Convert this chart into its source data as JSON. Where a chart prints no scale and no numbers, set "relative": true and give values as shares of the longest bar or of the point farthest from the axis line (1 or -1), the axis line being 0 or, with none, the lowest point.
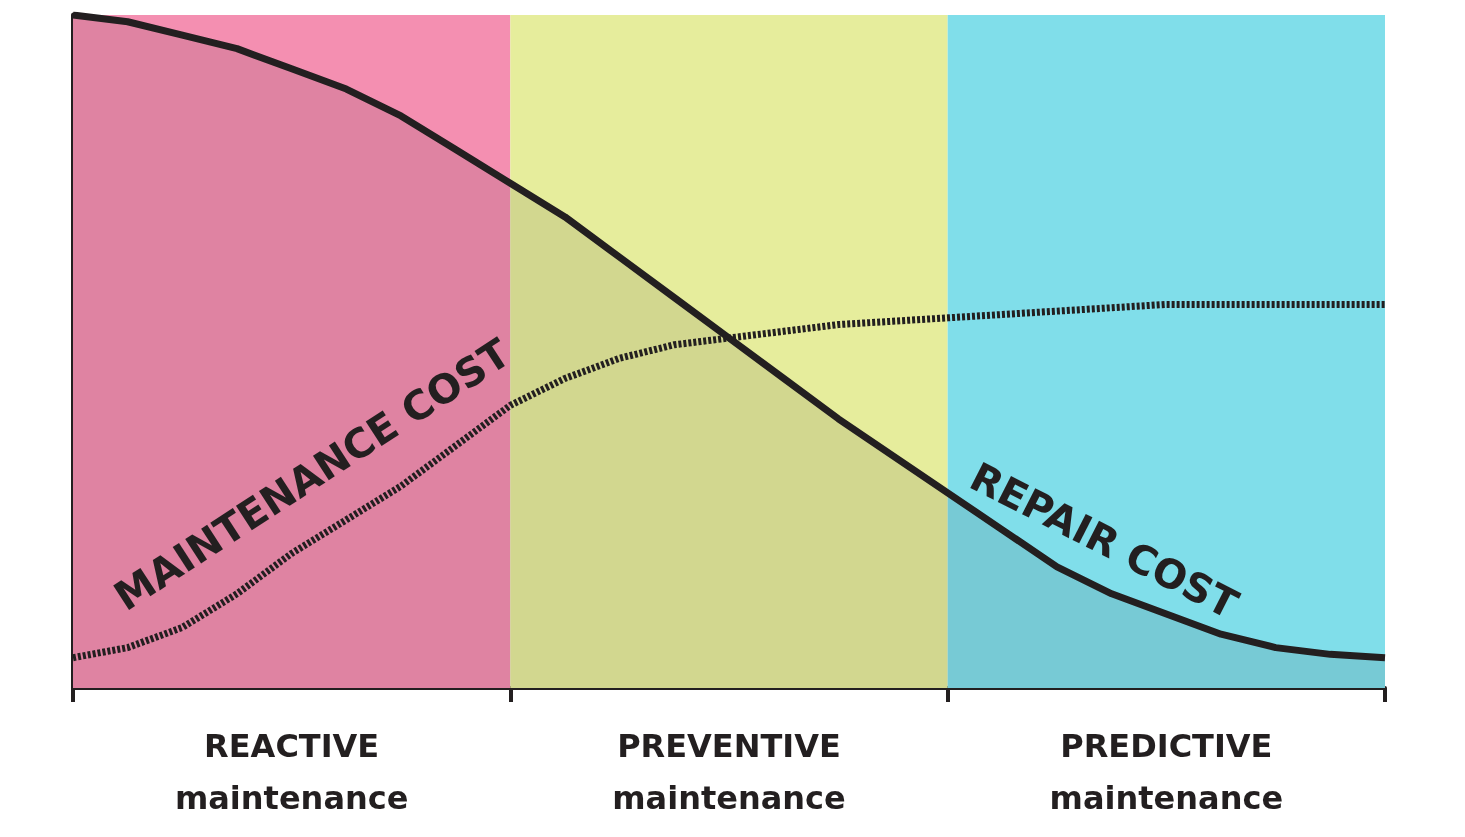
{
  "chart_data": {
    "type": "area",
    "relative": true,
    "categories": [
      null,
      null,
      null,
      null,
      "REACTIVE\nmaintenance",
      null,
      null,
      null,
      null,
      null,
      null,
      null,
      "PREVENTIVE\nmaintenance",
      null,
      null,
      null,
      null,
      null,
      null,
      null,
      "PREDICTIVE\nmaintenance",
      null,
      null,
      null,
      null
    ],
    "marker": "none",
    "series": [
      {
        "name": "REPAIR COST",
        "color": "#231f20",
        "line_style": "solid",
        "values": [
          1.0,
          0.99,
          0.97,
          0.95,
          0.92,
          0.89,
          0.85,
          0.8,
          0.75,
          0.7,
          0.64,
          0.58,
          0.52,
          0.46,
          0.4,
          0.345,
          0.29,
          0.235,
          0.18,
          0.14,
          0.11,
          0.08,
          0.06,
          0.05,
          0.045
        ]
      },
      {
        "name": "MAINTENANCE COST",
        "type": "line",
        "color": "#231f20",
        "line_style": "dashed",
        "values": [
          0.045,
          0.06,
          0.09,
          0.14,
          0.2,
          0.25,
          0.3,
          0.36,
          0.42,
          0.46,
          0.49,
          0.51,
          0.52,
          0.53,
          0.54,
          0.545,
          0.55,
          0.555,
          0.56,
          0.565,
          0.57,
          0.57,
          0.57,
          0.57,
          0.57
        ]
      }
    ]
  }
}
